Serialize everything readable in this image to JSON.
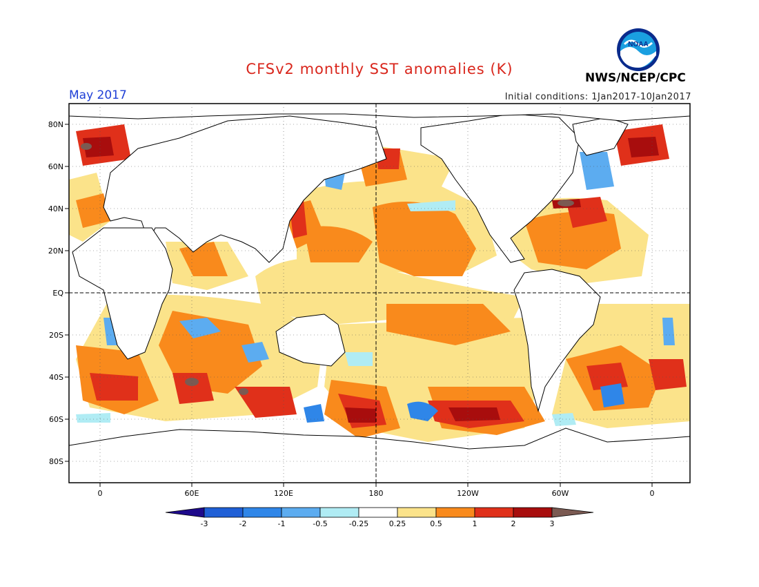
{
  "title": "CFSv2 monthly SST anomalies (K)",
  "month": "May 2017",
  "initial_conditions": "Initial conditions: 1Jan2017-10Jan2017",
  "agency": "NWS/NCEP/CPC",
  "logo_text": "NOAA",
  "lat_labels": [
    "80N",
    "60N",
    "40N",
    "20N",
    "EQ",
    "20S",
    "40S",
    "60S",
    "80S"
  ],
  "lon_labels": [
    "0",
    "60E",
    "120E",
    "180",
    "120W",
    "60W",
    "0"
  ],
  "colorbar": {
    "tick_labels": [
      "-3",
      "-2",
      "-1",
      "-0.5",
      "-0.25",
      "0.25",
      "0.5",
      "1",
      "2",
      "3"
    ],
    "colors": [
      "#1e0a8c",
      "#1f5fd6",
      "#2f86e8",
      "#5cacf0",
      "#b0ecf4",
      "#ffffff",
      "#fbe38a",
      "#f98a1c",
      "#e0301a",
      "#a80d0d",
      "#7b5a52"
    ]
  }
}
